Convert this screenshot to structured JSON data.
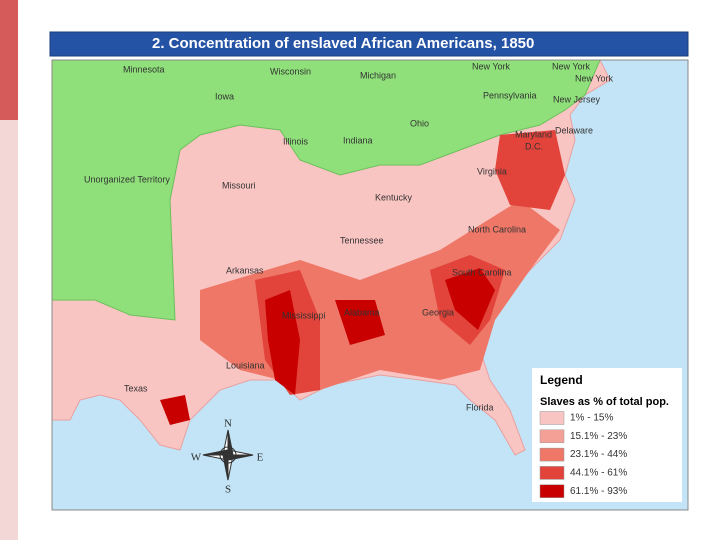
{
  "header": {
    "title": "2.  Concentration of enslaved African Americans, 1850"
  },
  "map": {
    "labels": [
      "Minnesota",
      "Wisconsin",
      "Michigan",
      "New York",
      "New York",
      "New York",
      "Iowa",
      "Pennsylvania",
      "New Jersey",
      "Ohio",
      "Delaware",
      "Maryland",
      "D.C.",
      "Illinois",
      "Indiana",
      "Unorganized Territory",
      "Missouri",
      "Virginia",
      "Kentucky",
      "North Carolina",
      "Tennessee",
      "Arkansas",
      "South Carolina",
      "Mississippi",
      "Alabama",
      "Georgia",
      "Louisiana",
      "Texas",
      "Florida"
    ]
  },
  "legend": {
    "title": "Legend",
    "subtitle": "Slaves as % of total pop.",
    "entries": [
      {
        "label": "1% - 15%",
        "color": "#f9c5c3"
      },
      {
        "label": "15.1% - 23%",
        "color": "#f4a096"
      },
      {
        "label": "23.1% - 44%",
        "color": "#ee7767"
      },
      {
        "label": "44.1% - 61%",
        "color": "#e2433a"
      },
      {
        "label": "61.1% - 93%",
        "color": "#c80000"
      }
    ]
  },
  "compass": {
    "n": "N",
    "e": "E",
    "s": "S",
    "w": "W"
  }
}
